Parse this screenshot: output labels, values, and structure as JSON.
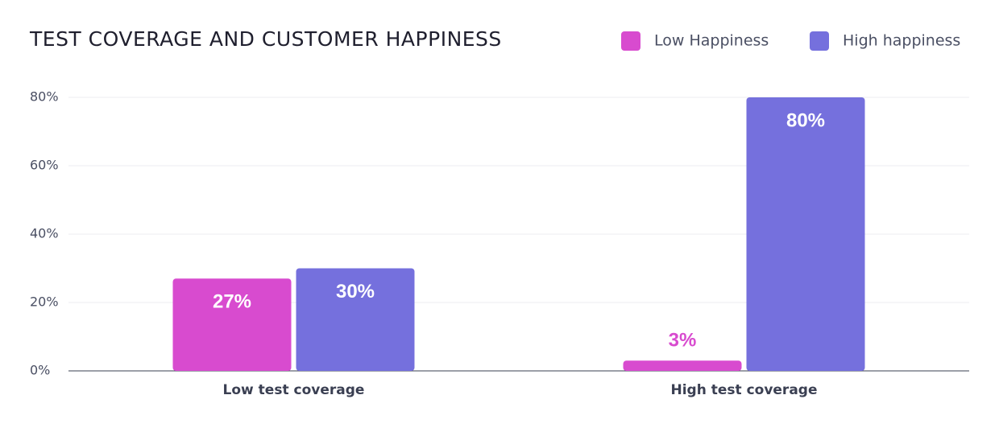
{
  "chart_data": {
    "type": "bar",
    "title": "TEST COVERAGE AND CUSTOMER HAPPINESS",
    "categories": [
      "Low test coverage",
      "High test coverage"
    ],
    "series": [
      {
        "name": "Low Happiness",
        "color": "#d84bcf",
        "values": [
          27,
          3
        ],
        "value_labels": [
          "27%",
          "3%"
        ]
      },
      {
        "name": "High happiness",
        "color": "#7570dd",
        "values": [
          30,
          80
        ],
        "value_labels": [
          "30%",
          "80%"
        ]
      }
    ],
    "ylim": [
      0,
      80
    ],
    "yticks": [
      {
        "value": 0,
        "label": "0%"
      },
      {
        "value": 20,
        "label": "20%"
      },
      {
        "value": 40,
        "label": "40%"
      },
      {
        "value": 60,
        "label": "60%"
      },
      {
        "value": 80,
        "label": "80%"
      }
    ],
    "grid": true,
    "legend": "top-right"
  }
}
